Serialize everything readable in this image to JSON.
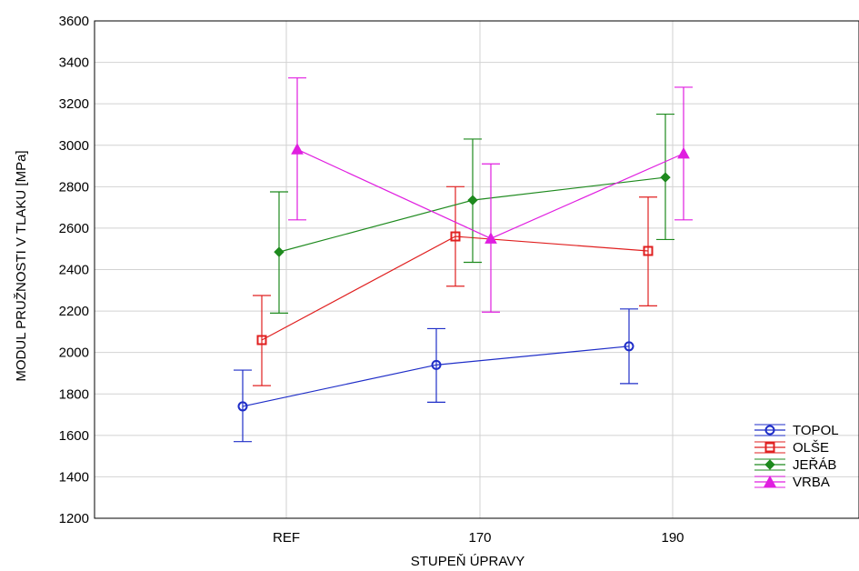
{
  "chart_data": {
    "type": "line",
    "title": "",
    "xlabel": "STUPEŇ ÚPRAVY",
    "ylabel": "MODUL PRUŽNOSTI V TLAKU  [MPa]",
    "categories": [
      "REF",
      "170",
      "190"
    ],
    "ylim": [
      1200,
      3600
    ],
    "yticks": [
      1200,
      1400,
      1600,
      1800,
      2000,
      2200,
      2400,
      2600,
      2800,
      3000,
      3200,
      3400,
      3600
    ],
    "grid": true,
    "legend_position": "bottom-right",
    "series": [
      {
        "name": "TOPOL",
        "color": "#1f2ec8",
        "marker": "circle",
        "values": [
          1740,
          1940,
          2030
        ],
        "lower": [
          1570,
          1760,
          1850
        ],
        "upper": [
          1915,
          2115,
          2210
        ]
      },
      {
        "name": "OLŠE",
        "color": "#e02020",
        "marker": "square",
        "values": [
          2060,
          2560,
          2490
        ],
        "lower": [
          1840,
          2320,
          2225
        ],
        "upper": [
          2275,
          2800,
          2750
        ]
      },
      {
        "name": "JEŘÁB",
        "color": "#1e8a1e",
        "marker": "diamond",
        "values": [
          2485,
          2735,
          2845
        ],
        "lower": [
          2190,
          2435,
          2545
        ],
        "upper": [
          2775,
          3030,
          3150
        ]
      },
      {
        "name": "VRBA",
        "color": "#e01ee0",
        "marker": "triangle",
        "values": [
          2980,
          2550,
          2960
        ],
        "lower": [
          2640,
          2195,
          2640
        ],
        "upper": [
          3325,
          2910,
          3280
        ]
      }
    ]
  }
}
